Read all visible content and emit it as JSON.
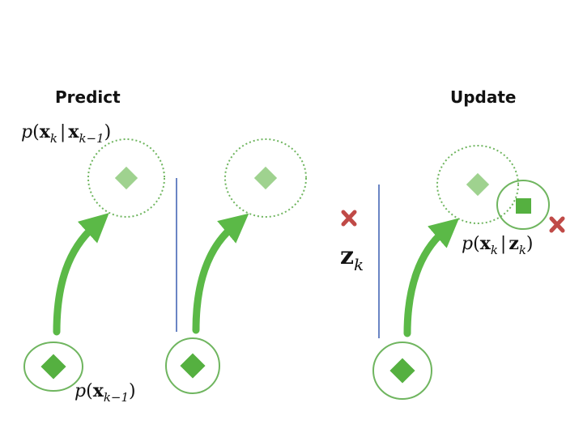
{
  "headings": {
    "predict": "Predict",
    "update": "Update"
  },
  "labels": {
    "transition": {
      "p": "p",
      "open": "(",
      "x": "x",
      "k": "k",
      "bar": "|",
      "x2": "x",
      "km1": "k−1",
      "close": ")"
    },
    "prior": {
      "p": "p",
      "open": "(",
      "x": "x",
      "km1": "k−1",
      "close": ")"
    },
    "likelihood": {
      "p": "p",
      "open": "(",
      "x": "x",
      "k": "k",
      "bar": "|",
      "z": "z",
      "k2": "k",
      "close": ")"
    },
    "measurement": {
      "z": "z",
      "k": "k"
    }
  },
  "colors": {
    "arrow": "#5bb947",
    "diamond_solid": "#55b040",
    "diamond_light": "#9fd28f",
    "ellipse_stroke": "#6fb55f",
    "divider": "#6b85c4",
    "cross": "#c04a47"
  }
}
